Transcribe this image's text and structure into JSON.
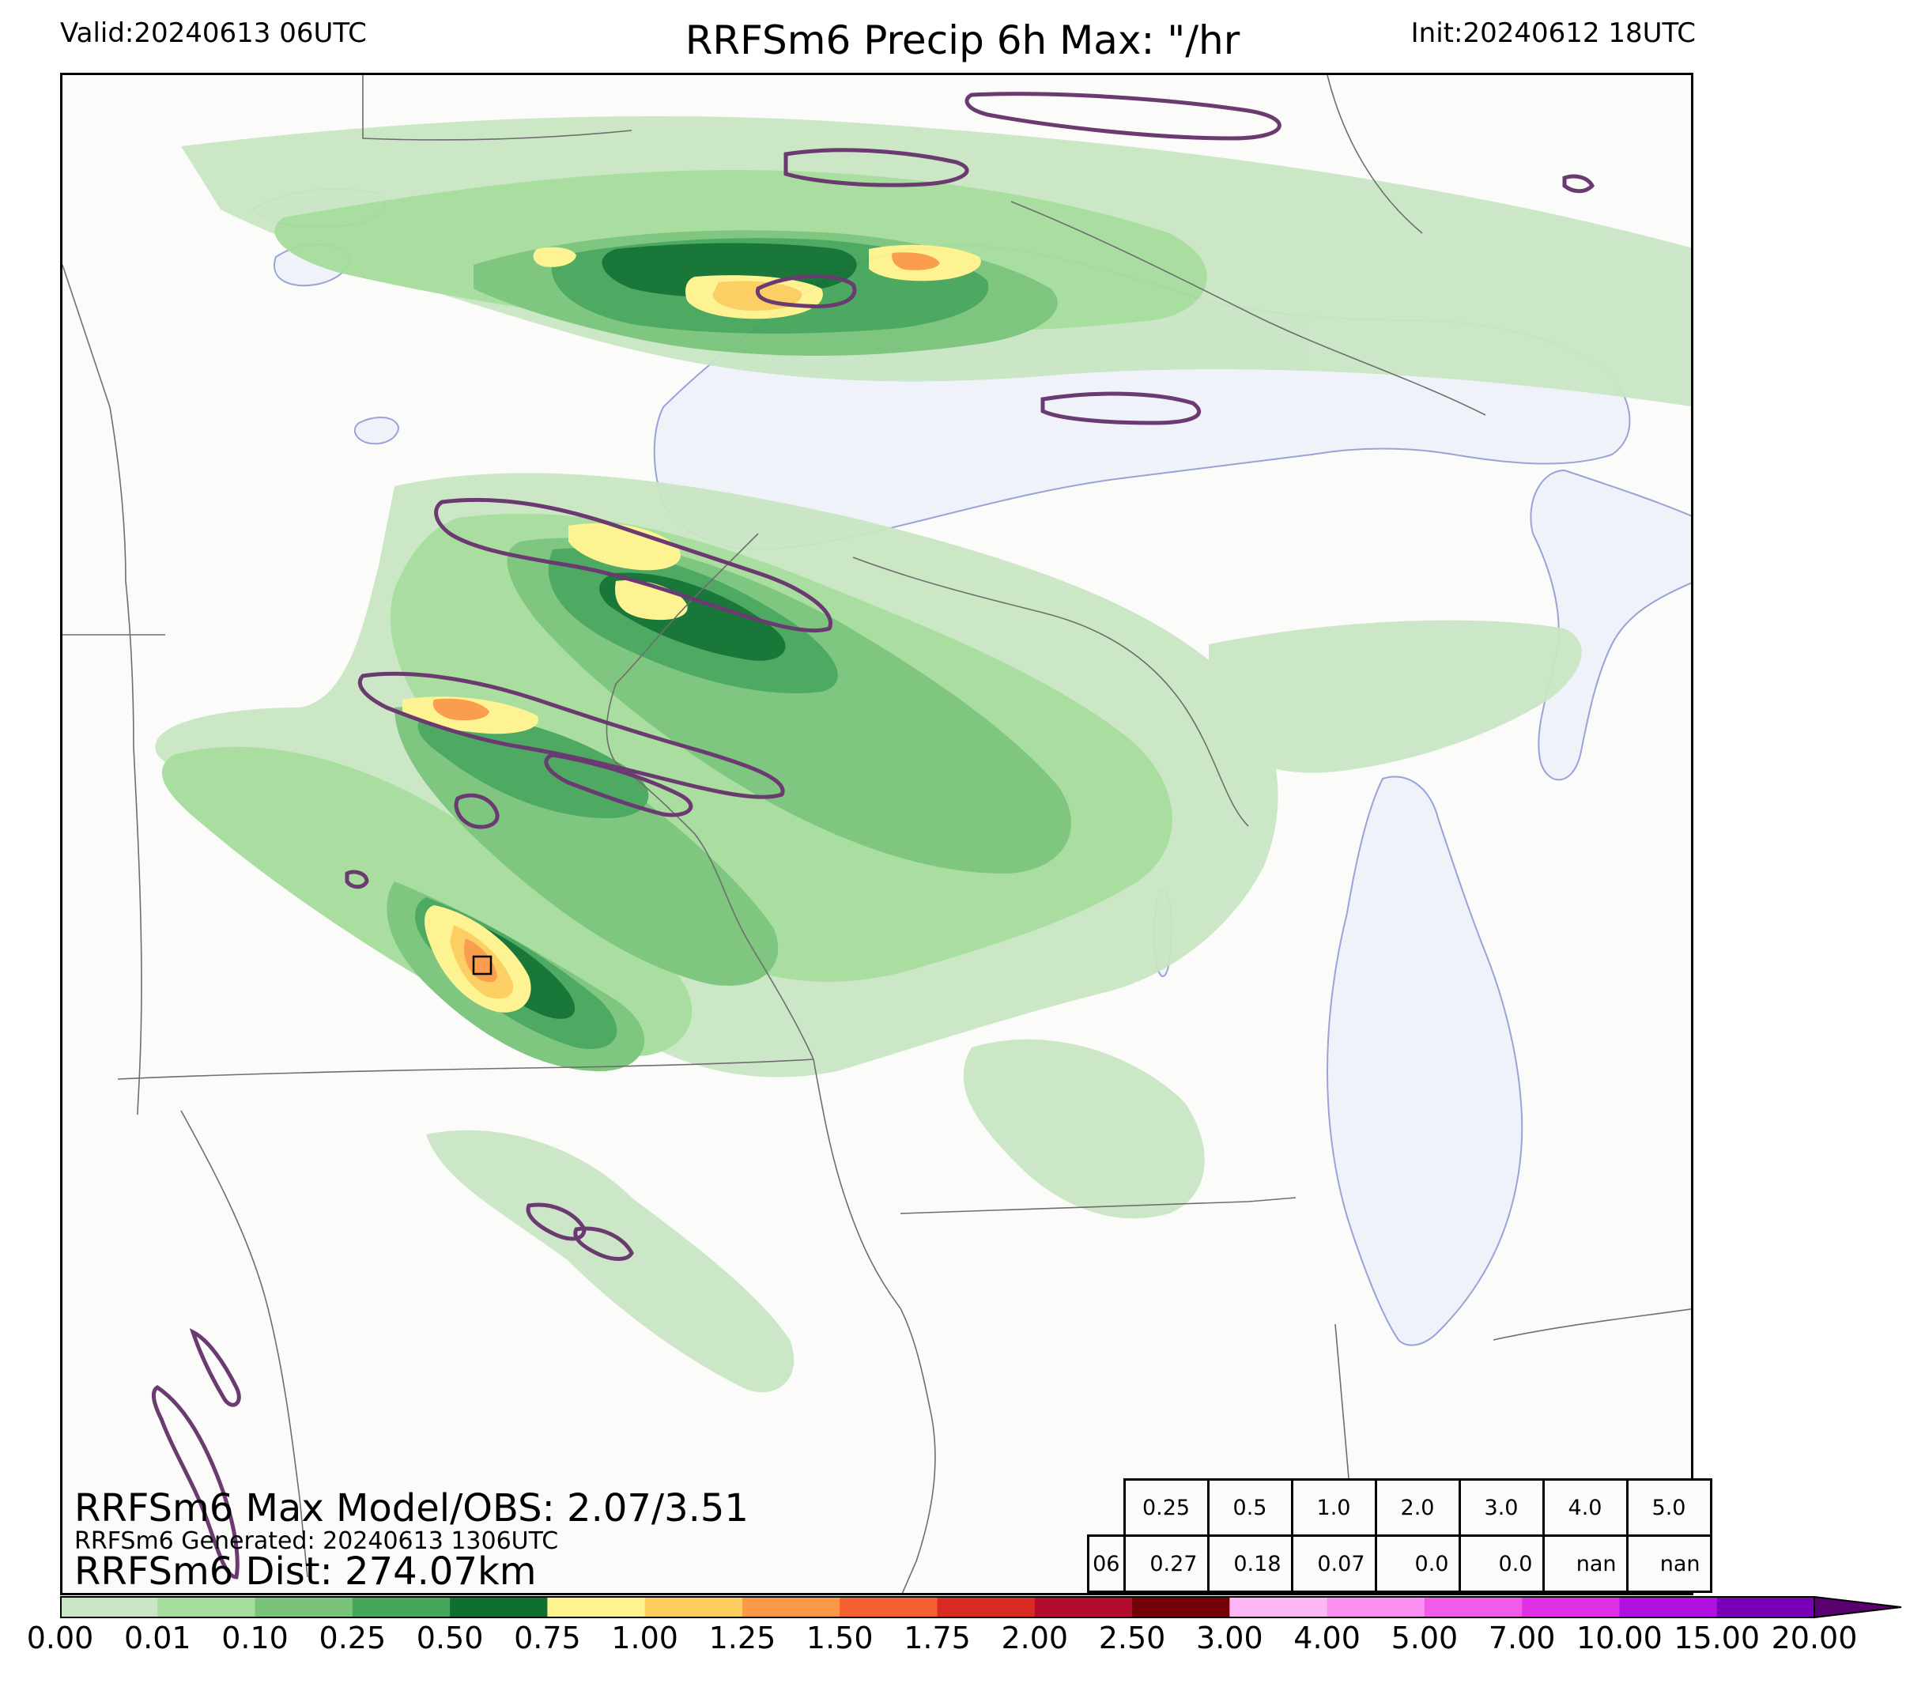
{
  "header": {
    "valid": "Valid:20240613 06UTC",
    "title": "RRFSm6 Precip 6h Max: \"/hr",
    "init": "Init:20240612 18UTC"
  },
  "stats": {
    "max_model_obs": "RRFSm6 Max Model/OBS: 2.07/3.51",
    "generated": "RRFSm6 Generated: 20240613 1306UTC",
    "distance": "RRFSm6 Dist: 274.07km"
  },
  "threshold_table": {
    "thresholds": [
      "0.25",
      "0.5",
      "1.0",
      "2.0",
      "3.0",
      "4.0",
      "5.0"
    ],
    "row_label": "06",
    "values": [
      "0.27",
      "0.18",
      "0.07",
      "0.0",
      "0.0",
      "nan",
      "nan"
    ]
  },
  "colorbar": {
    "ticks": [
      "0.00",
      "0.01",
      "0.10",
      "0.25",
      "0.50",
      "0.75",
      "1.00",
      "1.25",
      "1.50",
      "1.75",
      "2.00",
      "2.50",
      "3.00",
      "4.00",
      "5.00",
      "7.00",
      "10.00",
      "15.00",
      "20.00"
    ],
    "colors": [
      "#ffffff",
      "#c9e6c4",
      "#a5dd9c",
      "#79c47a",
      "#45a55a",
      "#0d7030",
      "#fef38e",
      "#fdcd5d",
      "#fb9946",
      "#f56032",
      "#da2a24",
      "#b20d2c",
      "#720004",
      "#fcb7f4",
      "#f98ff0",
      "#f05ce8",
      "#e030e6",
      "#b010e0",
      "#7a00b8"
    ],
    "extend_color": "#5a0070"
  },
  "colors": {
    "lake": "#eff3f9",
    "lake_edge": "#9aa3d6",
    "border": "#6e6e6e",
    "obs_contour": "#6a3a70",
    "background": "#fbfbf9"
  }
}
